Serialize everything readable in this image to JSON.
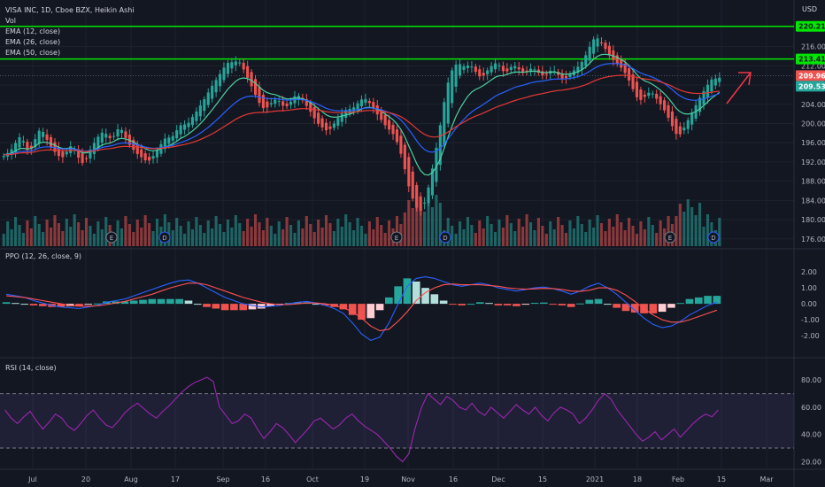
{
  "legend": {
    "symbol_line": "VISA INC, 1D, Cboe BZX, Heikin Ashi",
    "vol": "Vol",
    "ema12": "EMA (12, close)",
    "ema26": "EMA (26, close)",
    "ema50": "EMA (50, close)"
  },
  "currency": "USD",
  "pane_titles": {
    "ppo": "PPO (12, 26, close, 9)",
    "rsi": "RSI (14, close)"
  },
  "colors": {
    "background": "#131722",
    "up": "#26a69a",
    "down": "#ef5350",
    "ema12": "#4dd0a0",
    "ema26": "#2962ff",
    "ema50": "#e53935",
    "hline": "#00e600",
    "rsi": "#9c27b0",
    "arrow": "#f23645",
    "ppo_signal": "#ff5252"
  },
  "chart_data": [
    {
      "type": "candlestick",
      "title": "VISA INC, 1D, Cboe BZX, Heikin Ashi",
      "x_ticks": [
        "Jul",
        "20",
        "Aug",
        "17",
        "Sep",
        "16",
        "Oct",
        "19",
        "Nov",
        "16",
        "Dec",
        "15",
        "2021",
        "18",
        "Feb",
        "15",
        "Mar"
      ],
      "y_ticks": [
        "216.00",
        "212.00",
        "208.00",
        "204.00",
        "200.00",
        "196.00",
        "192.00",
        "188.00",
        "184.00",
        "180.00",
        "176.00"
      ],
      "ylim": [
        174.5,
        222
      ],
      "price_tags": [
        {
          "value": "220.21",
          "bg": "#00e600",
          "fg": "#131722"
        },
        {
          "value": "213.41",
          "bg": "#00e600",
          "fg": "#131722"
        },
        {
          "value": "209.96",
          "bg": "#ef5350",
          "fg": "#ffffff"
        },
        {
          "value": "209.53",
          "bg": "#26a69a",
          "fg": "#ffffff"
        }
      ],
      "horizontal_lines": [
        220.21,
        213.41
      ],
      "closes": [
        193.5,
        194.2,
        195.1,
        196.8,
        197.5,
        195.2,
        193.8,
        195.6,
        197.9,
        199.1,
        197.4,
        195.8,
        194.3,
        193.9,
        192.6,
        193.4,
        194.8,
        195.7,
        193.7,
        192.1,
        191.5,
        193.9,
        195.2,
        196.7,
        197.8,
        198.4,
        197.3,
        196.6,
        198.2,
        199.4,
        197.9,
        196.1,
        195.0,
        194.1,
        193.2,
        192.8,
        191.9,
        192.7,
        193.8,
        195.1,
        196.3,
        197.4,
        196.8,
        198.0,
        199.2,
        200.1,
        199.5,
        200.8,
        201.9,
        203.1,
        204.4,
        205.7,
        207.2,
        208.5,
        209.6,
        211.0,
        212.2,
        213.0,
        212.5,
        213.3,
        212.1,
        210.4,
        208.6,
        206.9,
        205.0,
        203.6,
        202.8,
        203.9,
        204.6,
        205.3,
        204.1,
        203.3,
        203.9,
        205.2,
        206.1,
        205.4,
        204.2,
        203.1,
        201.8,
        200.4,
        199.5,
        198.9,
        198.3,
        199.4,
        200.6,
        201.7,
        202.4,
        203.2,
        202.9,
        203.8,
        204.6,
        205.4,
        204.8,
        203.7,
        202.5,
        201.3,
        200.2,
        199.1,
        198.4,
        197.2,
        195.1,
        192.3,
        188.7,
        185.2,
        183.6,
        181.4,
        182.3,
        184.8,
        188.6,
        192.7,
        197.2,
        202.1,
        206.8,
        210.2,
        211.9,
        212.6,
        212.1,
        211.7,
        212.4,
        211.3,
        210.2,
        209.4,
        210.5,
        211.6,
        212.3,
        212.7,
        211.5,
        210.3,
        211.4,
        212.1,
        211.8,
        210.7,
        210.4,
        211.2,
        211.6,
        210.9,
        210.2,
        209.8,
        210.6,
        211.3,
        210.5,
        209.7,
        209.0,
        209.9,
        210.7,
        211.4,
        212.2,
        213.4,
        215.0,
        216.9,
        218.1,
        217.3,
        216.2,
        214.8,
        213.6,
        212.8,
        212.0,
        211.2,
        209.8,
        208.1,
        206.2,
        204.7,
        205.1,
        206.0,
        206.8,
        205.7,
        204.6,
        203.4,
        202.1,
        200.3,
        198.6,
        197.1,
        198.4,
        199.9,
        201.5,
        203.0,
        204.6,
        206.1,
        207.4,
        208.7,
        209.6,
        209.1,
        209.96
      ],
      "volume_note": "volume histogram bars colored by candle direction"
    },
    {
      "type": "line",
      "title": "PPO (12, 26, close, 9)",
      "y_ticks": [
        "2.00",
        "1.00",
        "0.00",
        "-1.00",
        "-2.00"
      ],
      "ylim": [
        -2.5,
        2.4
      ],
      "values": [
        0.6,
        0.5,
        0.4,
        0.2,
        0.05,
        -0.1,
        -0.2,
        -0.25,
        -0.3,
        -0.2,
        -0.1,
        0.1,
        0.2,
        0.3,
        0.5,
        0.7,
        0.9,
        1.1,
        1.3,
        1.45,
        1.5,
        1.3,
        1.0,
        0.7,
        0.4,
        0.2,
        0.0,
        -0.1,
        -0.2,
        -0.15,
        -0.1,
        0.0,
        0.1,
        0.15,
        0.05,
        -0.1,
        -0.3,
        -0.6,
        -1.2,
        -1.9,
        -2.3,
        -2.1,
        -1.2,
        0.0,
        1.1,
        1.6,
        1.7,
        1.6,
        1.4,
        1.2,
        1.1,
        1.2,
        1.3,
        1.2,
        1.0,
        0.9,
        0.8,
        0.9,
        1.0,
        1.05,
        0.95,
        0.8,
        0.6,
        0.8,
        1.1,
        1.3,
        1.0,
        0.6,
        0.1,
        -0.4,
        -0.9,
        -1.3,
        -1.5,
        -1.4,
        -1.1,
        -0.7,
        -0.4,
        -0.1,
        0.1
      ],
      "signal": [
        0.5,
        0.45,
        0.4,
        0.3,
        0.2,
        0.1,
        0.0,
        -0.1,
        -0.15,
        -0.15,
        -0.12,
        -0.05,
        0.05,
        0.15,
        0.3,
        0.45,
        0.6,
        0.8,
        1.0,
        1.15,
        1.3,
        1.3,
        1.2,
        1.0,
        0.8,
        0.6,
        0.4,
        0.25,
        0.1,
        0.0,
        -0.05,
        -0.05,
        0.0,
        0.05,
        0.05,
        0.0,
        -0.1,
        -0.25,
        -0.5,
        -0.9,
        -1.4,
        -1.7,
        -1.6,
        -1.1,
        -0.5,
        0.2,
        0.7,
        1.0,
        1.2,
        1.25,
        1.2,
        1.2,
        1.2,
        1.15,
        1.1,
        1.0,
        0.95,
        0.92,
        0.94,
        0.97,
        0.96,
        0.9,
        0.8,
        0.78,
        0.85,
        1.0,
        1.0,
        0.85,
        0.55,
        0.15,
        -0.3,
        -0.7,
        -1.0,
        -1.15,
        -1.15,
        -1.0,
        -0.8,
        -0.6,
        -0.4
      ],
      "histogram": [
        0.1,
        0.05,
        0.0,
        -0.1,
        -0.15,
        -0.2,
        -0.2,
        -0.15,
        -0.15,
        -0.05,
        0.02,
        0.15,
        0.15,
        0.15,
        0.2,
        0.25,
        0.3,
        0.3,
        0.3,
        0.3,
        0.2,
        0.0,
        -0.2,
        -0.3,
        -0.4,
        -0.4,
        -0.4,
        -0.35,
        -0.3,
        -0.15,
        -0.05,
        0.05,
        0.1,
        0.1,
        0.0,
        -0.1,
        -0.2,
        -0.35,
        -0.7,
        -1.0,
        -0.9,
        -0.4,
        0.4,
        1.1,
        1.6,
        1.4,
        1.0,
        0.6,
        0.2,
        -0.05,
        -0.1,
        0.0,
        0.1,
        0.05,
        -0.1,
        -0.1,
        -0.15,
        -0.02,
        0.06,
        0.08,
        -0.01,
        -0.1,
        -0.2,
        0.02,
        0.25,
        0.3,
        0.0,
        -0.25,
        -0.45,
        -0.55,
        -0.6,
        -0.6,
        -0.5,
        -0.25,
        0.05,
        0.3,
        0.4,
        0.5,
        0.5
      ]
    },
    {
      "type": "line",
      "title": "RSI (14, close)",
      "y_ticks": [
        "80.00",
        "60.00",
        "40.00",
        "20.00"
      ],
      "ylim": [
        17,
        86
      ],
      "bands": [
        70,
        30
      ],
      "values": [
        58,
        52,
        48,
        53,
        57,
        50,
        44,
        49,
        55,
        52,
        46,
        43,
        48,
        54,
        58,
        52,
        47,
        45,
        50,
        56,
        60,
        63,
        59,
        55,
        52,
        57,
        61,
        66,
        71,
        75,
        78,
        80,
        82,
        79,
        60,
        54,
        48,
        50,
        55,
        52,
        44,
        37,
        42,
        48,
        45,
        40,
        34,
        39,
        44,
        50,
        52,
        48,
        44,
        47,
        52,
        55,
        50,
        46,
        43,
        40,
        35,
        30,
        24,
        20,
        26,
        45,
        60,
        70,
        66,
        62,
        68,
        65,
        60,
        58,
        63,
        57,
        54,
        60,
        56,
        52,
        57,
        62,
        58,
        55,
        60,
        54,
        50,
        56,
        60,
        58,
        55,
        48,
        52,
        58,
        65,
        70,
        66,
        58,
        52,
        46,
        40,
        35,
        38,
        42,
        36,
        40,
        44,
        38,
        43,
        48,
        52,
        55,
        53,
        58
      ]
    }
  ]
}
